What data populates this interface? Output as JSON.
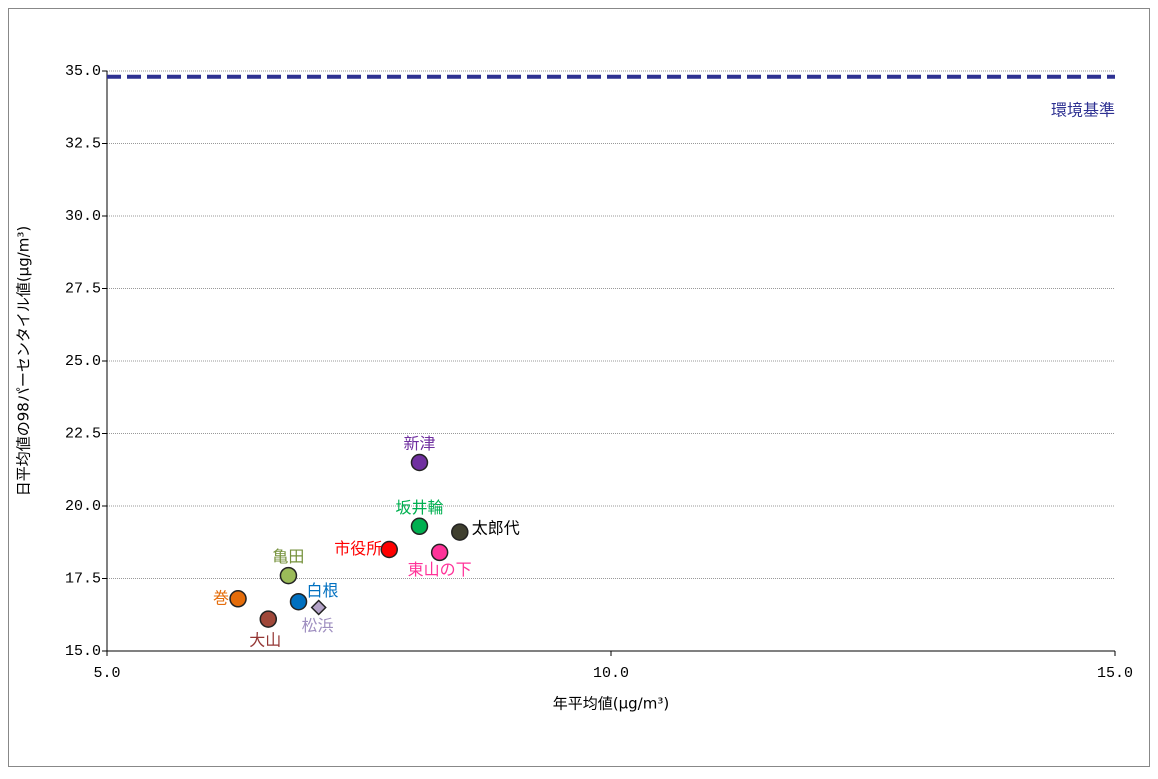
{
  "chart_data": {
    "type": "scatter",
    "x_label": "年平均値(μg/m³)",
    "y_label": "日平均値の98パーセンタイル値(μg/m³)",
    "xlim": [
      5,
      15
    ],
    "xticks": [
      {
        "value": 5,
        "label": "5.0"
      },
      {
        "value": 10,
        "label": "10.0"
      },
      {
        "value": 15,
        "label": "15.0"
      }
    ],
    "ylim": [
      15,
      35
    ],
    "yticks": [
      {
        "value": 15,
        "label": "15.0"
      },
      {
        "value": 17.5,
        "label": "17.5"
      },
      {
        "value": 20,
        "label": "20.0"
      },
      {
        "value": 22.5,
        "label": "22.5"
      },
      {
        "value": 25,
        "label": "25.0"
      },
      {
        "value": 27.5,
        "label": "27.5"
      },
      {
        "value": 30,
        "label": "30.0"
      },
      {
        "value": 32.5,
        "label": "32.5"
      },
      {
        "value": 35,
        "label": "35.0"
      }
    ],
    "grid": true,
    "reference_line": {
      "value": 34.8,
      "label": "環境基準",
      "color": "#2e3192"
    },
    "series": [
      {
        "name": "新津",
        "color": "#7030a0",
        "marker": "circle",
        "x": [
          8.1
        ],
        "values": [
          21.5
        ]
      },
      {
        "name": "坂井輪",
        "color": "#00b050",
        "marker": "circle",
        "x": [
          8.1
        ],
        "values": [
          19.3
        ]
      },
      {
        "name": "太郎代",
        "color": "#3f3f2f",
        "label_color": "#000000",
        "marker": "circle",
        "x": [
          8.5
        ],
        "values": [
          19.1
        ]
      },
      {
        "name": "市役所",
        "color": "#ff0000",
        "marker": "circle",
        "x": [
          7.8
        ],
        "values": [
          18.5
        ]
      },
      {
        "name": "東山の下",
        "color": "#ff3399",
        "marker": "circle",
        "x": [
          8.3
        ],
        "values": [
          18.4
        ]
      },
      {
        "name": "亀田",
        "color": "#9bbb59",
        "label_color": "#76923c",
        "marker": "circle",
        "x": [
          6.8
        ],
        "values": [
          17.6
        ]
      },
      {
        "name": "巻",
        "color": "#e46c0a",
        "marker": "circle",
        "x": [
          6.3
        ],
        "values": [
          16.8
        ]
      },
      {
        "name": "白根",
        "color": "#0070c0",
        "marker": "circle",
        "x": [
          6.9
        ],
        "values": [
          16.7
        ]
      },
      {
        "name": "松浜",
        "color": "#b3a2c7",
        "label_color": "#9f8fc0",
        "marker": "diamond",
        "x": [
          7.1
        ],
        "values": [
          16.5
        ]
      },
      {
        "name": "大山",
        "color": "#a0483a",
        "label_color": "#943634",
        "marker": "circle",
        "x": [
          6.6
        ],
        "values": [
          16.1
        ]
      }
    ]
  }
}
